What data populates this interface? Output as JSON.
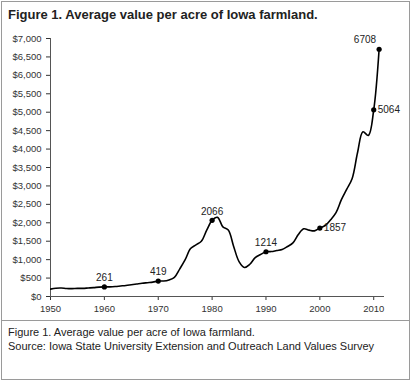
{
  "chart_data": {
    "type": "line",
    "title": "Figure 1. Average value per acre of Iowa farmland.",
    "caption": [
      "Figure 1. Average value per acre of Iowa farmland.",
      "Source: Iowa State University Extension and Outreach Land Values Survey"
    ],
    "x": [
      1950,
      1951,
      1952,
      1953,
      1954,
      1955,
      1956,
      1957,
      1958,
      1959,
      1960,
      1961,
      1962,
      1963,
      1964,
      1965,
      1966,
      1967,
      1968,
      1969,
      1970,
      1971,
      1972,
      1973,
      1974,
      1975,
      1976,
      1977,
      1978,
      1979,
      1980,
      1981,
      1982,
      1983,
      1984,
      1985,
      1986,
      1987,
      1988,
      1989,
      1990,
      1991,
      1992,
      1993,
      1994,
      1995,
      1996,
      1997,
      1998,
      1999,
      2000,
      2001,
      2002,
      2003,
      2004,
      2005,
      2006,
      2007,
      2008,
      2009,
      2010,
      2011
    ],
    "values": [
      200,
      225,
      230,
      215,
      215,
      220,
      220,
      230,
      240,
      255,
      261,
      262,
      270,
      285,
      300,
      320,
      340,
      360,
      375,
      390,
      419,
      420,
      450,
      520,
      750,
      1000,
      1300,
      1400,
      1500,
      1800,
      2066,
      2147,
      1889,
      1801,
      1357,
      948,
      787,
      875,
      1054,
      1139,
      1214,
      1219,
      1249,
      1275,
      1356,
      1455,
      1682,
      1837,
      1801,
      1781,
      1857,
      1926,
      2083,
      2275,
      2629,
      2914,
      3204,
      3908,
      4468,
      4371,
      5064,
      6708
    ],
    "color": "#000000",
    "annotations": [
      {
        "x": 1960,
        "y": 261,
        "label": "261"
      },
      {
        "x": 1970,
        "y": 419,
        "label": "419"
      },
      {
        "x": 1980,
        "y": 2066,
        "label": "2066"
      },
      {
        "x": 1990,
        "y": 1214,
        "label": "1214"
      },
      {
        "x": 2000,
        "y": 1857,
        "label": "1857"
      },
      {
        "x": 2010,
        "y": 5064,
        "label": "5064"
      },
      {
        "x": 2011,
        "y": 6708,
        "label": "6708"
      }
    ],
    "xlim": [
      1950,
      2012
    ],
    "xticks": [
      1950,
      1960,
      1970,
      1980,
      1990,
      2000,
      2010
    ],
    "ylim": [
      0,
      7000
    ],
    "yticks": [
      {
        "value": 0,
        "label": "$0"
      },
      {
        "value": 500,
        "label": "$500"
      },
      {
        "value": 1000,
        "label": "$1,000"
      },
      {
        "value": 1500,
        "label": "$1,500"
      },
      {
        "value": 2000,
        "label": "$2,000"
      },
      {
        "value": 2500,
        "label": "$2,500"
      },
      {
        "value": 3000,
        "label": "$3,000"
      },
      {
        "value": 3500,
        "label": "$3,500"
      },
      {
        "value": 4000,
        "label": "$4,000"
      },
      {
        "value": 4500,
        "label": "$4,500"
      },
      {
        "value": 5000,
        "label": "$5,000"
      },
      {
        "value": 5500,
        "label": "$5,500"
      },
      {
        "value": 6000,
        "label": "$6,000"
      },
      {
        "value": 6500,
        "label": "$6,500"
      },
      {
        "value": 7000,
        "label": "$7,000"
      }
    ],
    "grid": false,
    "marker": "none",
    "line_style": "solid"
  }
}
